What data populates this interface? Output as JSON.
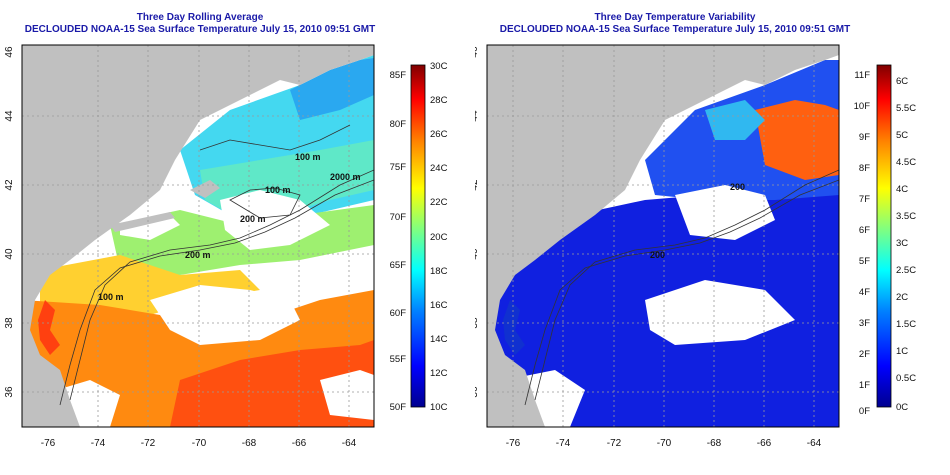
{
  "left_panel": {
    "title_line1": "Three Day Rolling Average",
    "title_line2": "DECLOUDED NOAA-15 Sea Surface Temperature July 15, 2010 09:51 GMT",
    "isobath_labels": [
      "100 m",
      "100 m",
      "2000 m",
      "200 m",
      "200 m",
      "100 m"
    ],
    "colorbar_f": [
      "85F",
      "80F",
      "75F",
      "70F",
      "65F",
      "60F",
      "55F",
      "50F"
    ],
    "colorbar_c": [
      "30C",
      "28C",
      "26C",
      "24C",
      "22C",
      "20C",
      "18C",
      "16C",
      "14C",
      "12C",
      "10C"
    ],
    "colormap": [
      "#00008f",
      "#0000ff",
      "#0080ff",
      "#00ffff",
      "#80ff80",
      "#ffff00",
      "#ff8000",
      "#ff0000",
      "#800000"
    ]
  },
  "right_panel": {
    "title_line1": "Three Day Temperature Variability",
    "title_line2": "DECLOUDED NOAA-15 Sea Surface Temperature July 15, 2010 09:51 GMT",
    "isobath_labels": [
      "200",
      "200"
    ],
    "colorbar_f": [
      "11F",
      "10F",
      "9F",
      "8F",
      "7F",
      "6F",
      "5F",
      "4F",
      "3F",
      "2F",
      "1F",
      "0F"
    ],
    "colorbar_c": [
      "6C",
      "5.5C",
      "5C",
      "4.5C",
      "4C",
      "3.5C",
      "3C",
      "2.5C",
      "2C",
      "1.5C",
      "1C",
      "0.5C",
      "0C"
    ],
    "colormap": [
      "#00008f",
      "#0000ff",
      "#0080ff",
      "#00ffff",
      "#80ff80",
      "#ffff00",
      "#ff8000",
      "#ff0000",
      "#800000"
    ]
  },
  "axes": {
    "x_ticks": [
      "-76",
      "-74",
      "-72",
      "-70",
      "-68",
      "-66",
      "-64"
    ],
    "y_ticks": [
      "46",
      "44",
      "42",
      "40",
      "38",
      "36"
    ]
  },
  "colors": {
    "title": "#1a1aa8",
    "land": "#c0c0c0",
    "cloud": "#ffffff"
  }
}
